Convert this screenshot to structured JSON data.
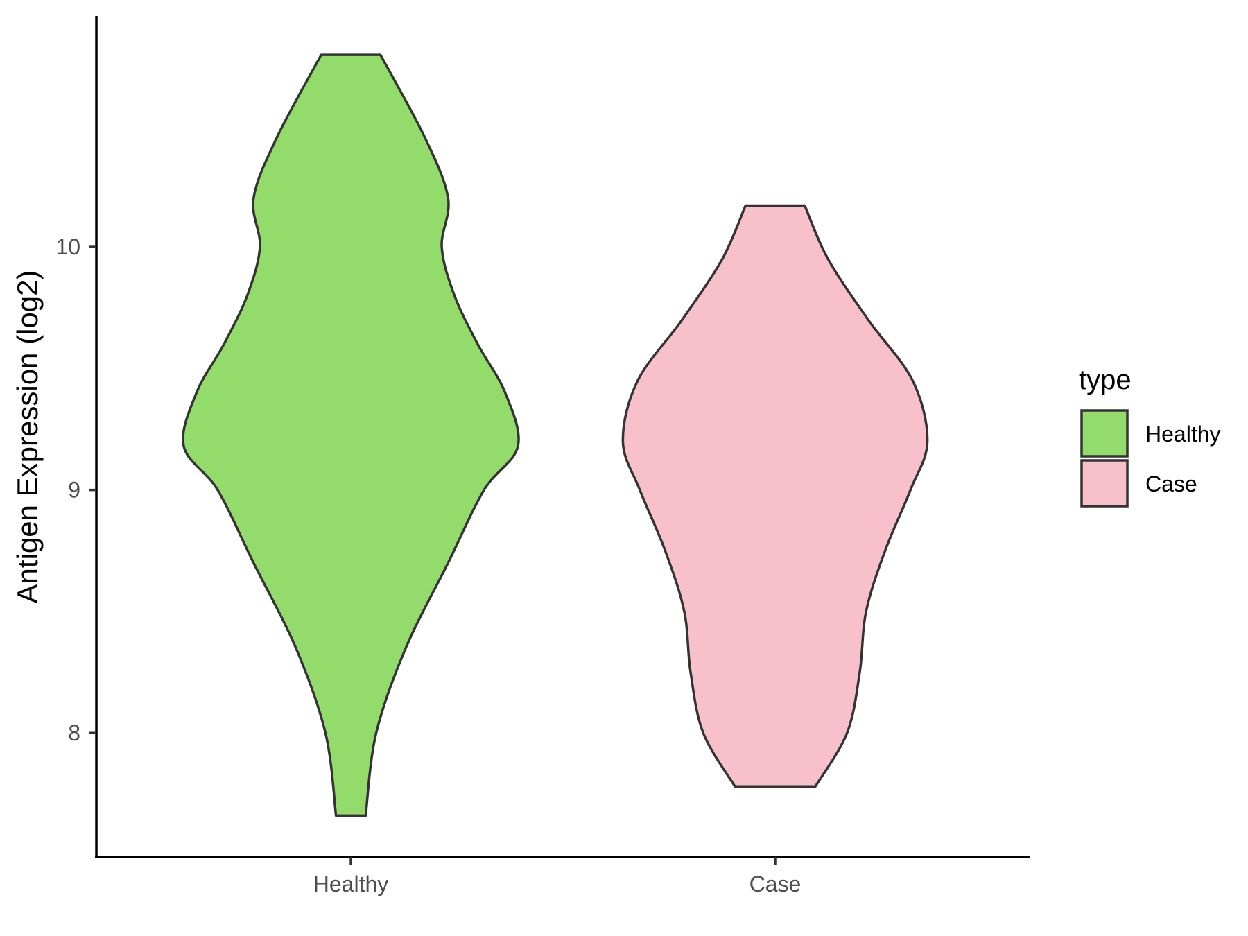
{
  "chart_data": {
    "type": "violin",
    "ylabel": "Antigen Expression (log2)",
    "xlabel": "",
    "categories": [
      "Healthy",
      "Case"
    ],
    "ylim": [
      7.49,
      10.95
    ],
    "yticks": [
      8,
      9,
      10
    ],
    "grid": false,
    "legend": {
      "title": "type",
      "placement": "right",
      "entries": [
        {
          "label": "Healthy",
          "color": "#93dc6b"
        },
        {
          "label": "Case",
          "color": "#f7c0cb"
        }
      ]
    },
    "series": [
      {
        "name": "Healthy",
        "color": "#93dc6b",
        "min": 7.66,
        "max": 10.79,
        "density_profile": [
          {
            "y": 7.66,
            "halfwidth": 0.07
          },
          {
            "y": 8.0,
            "halfwidth": 0.12
          },
          {
            "y": 8.35,
            "halfwidth": 0.26
          },
          {
            "y": 8.7,
            "halfwidth": 0.46
          },
          {
            "y": 9.0,
            "halfwidth": 0.63
          },
          {
            "y": 9.18,
            "halfwidth": 0.79
          },
          {
            "y": 9.4,
            "halfwidth": 0.73
          },
          {
            "y": 9.6,
            "halfwidth": 0.6
          },
          {
            "y": 9.8,
            "halfwidth": 0.49
          },
          {
            "y": 10.0,
            "halfwidth": 0.43
          },
          {
            "y": 10.2,
            "halfwidth": 0.46
          },
          {
            "y": 10.45,
            "halfwidth": 0.35
          },
          {
            "y": 10.79,
            "halfwidth": 0.14
          }
        ]
      },
      {
        "name": "Case",
        "color": "#f7c0cb",
        "min": 7.78,
        "max": 10.17,
        "density_profile": [
          {
            "y": 7.78,
            "halfwidth": 0.19
          },
          {
            "y": 8.0,
            "halfwidth": 0.34
          },
          {
            "y": 8.25,
            "halfwidth": 0.4
          },
          {
            "y": 8.5,
            "halfwidth": 0.43
          },
          {
            "y": 8.75,
            "halfwidth": 0.52
          },
          {
            "y": 9.0,
            "halfwidth": 0.64
          },
          {
            "y": 9.2,
            "halfwidth": 0.72
          },
          {
            "y": 9.45,
            "halfwidth": 0.65
          },
          {
            "y": 9.7,
            "halfwidth": 0.44
          },
          {
            "y": 9.95,
            "halfwidth": 0.25
          },
          {
            "y": 10.17,
            "halfwidth": 0.14
          }
        ]
      }
    ]
  }
}
